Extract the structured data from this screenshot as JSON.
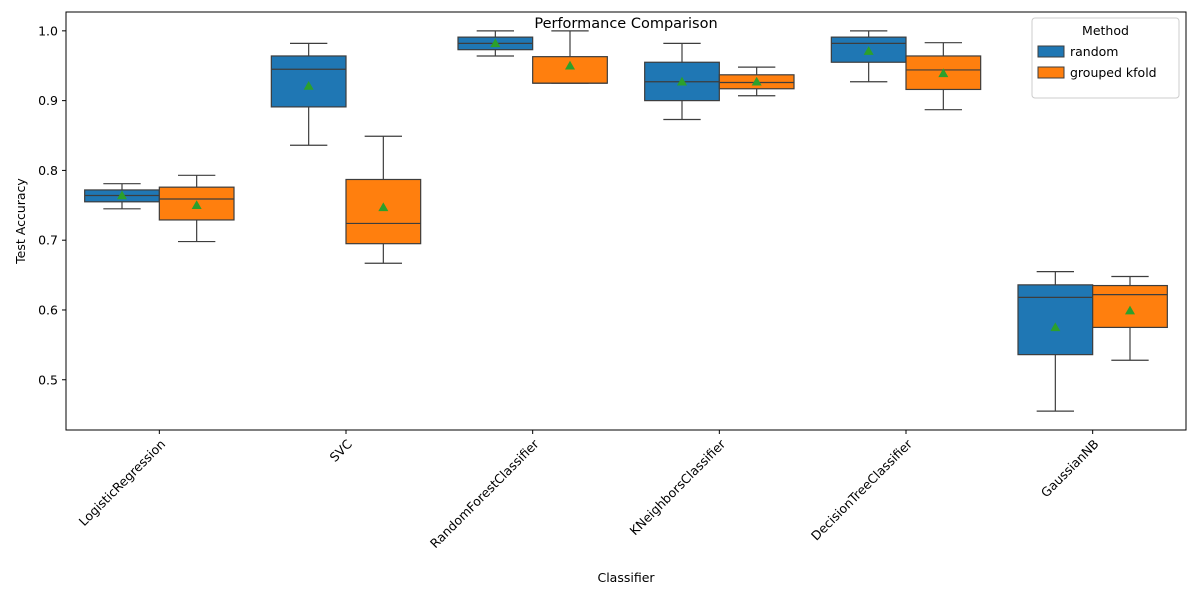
{
  "chart_data": {
    "type": "box",
    "title": "Performance Comparison",
    "xlabel": "Classifier",
    "ylabel": "Test Accuracy",
    "ylim": [
      0.428,
      1.027
    ],
    "yticks": [
      0.5,
      0.6,
      0.7,
      0.8,
      0.9,
      1.0
    ],
    "ytick_labels": [
      "0.5",
      "0.6",
      "0.7",
      "0.8",
      "0.9",
      "1.0"
    ],
    "categories": [
      "LogisticRegression",
      "SVC",
      "RandomForestClassifier",
      "KNeighborsClassifier",
      "DecisionTreeClassifier",
      "GaussianNB"
    ],
    "legend": {
      "title": "Method",
      "placement": "top-right"
    },
    "grid": false,
    "series": [
      {
        "name": "random",
        "color": "#1f77b4",
        "boxes": [
          {
            "whislo": 0.745,
            "q1": 0.755,
            "med": 0.764,
            "q3": 0.772,
            "whishi": 0.781,
            "mean": 0.764
          },
          {
            "whislo": 0.836,
            "q1": 0.891,
            "med": 0.945,
            "q3": 0.964,
            "whishi": 0.982,
            "mean": 0.921
          },
          {
            "whislo": 0.964,
            "q1": 0.973,
            "med": 0.982,
            "q3": 0.991,
            "whishi": 1.0,
            "mean": 0.982
          },
          {
            "whislo": 0.873,
            "q1": 0.9,
            "med": 0.927,
            "q3": 0.955,
            "whishi": 0.982,
            "mean": 0.927
          },
          {
            "whislo": 0.927,
            "q1": 0.955,
            "med": 0.982,
            "q3": 0.991,
            "whishi": 1.0,
            "mean": 0.971
          },
          {
            "whislo": 0.455,
            "q1": 0.536,
            "med": 0.618,
            "q3": 0.636,
            "whishi": 0.655,
            "mean": 0.575
          }
        ]
      },
      {
        "name": "grouped kfold",
        "color": "#ff7f0e",
        "boxes": [
          {
            "whislo": 0.698,
            "q1": 0.729,
            "med": 0.759,
            "q3": 0.776,
            "whishi": 0.793,
            "mean": 0.75
          },
          {
            "whislo": 0.667,
            "q1": 0.695,
            "med": 0.724,
            "q3": 0.787,
            "whishi": 0.849,
            "mean": 0.747
          },
          {
            "whislo": 0.925,
            "q1": 0.925,
            "med": 0.925,
            "q3": 0.963,
            "whishi": 1.0,
            "mean": 0.95
          },
          {
            "whislo": 0.907,
            "q1": 0.917,
            "med": 0.926,
            "q3": 0.937,
            "whishi": 0.948,
            "mean": 0.927
          },
          {
            "whislo": 0.887,
            "q1": 0.916,
            "med": 0.944,
            "q3": 0.964,
            "whishi": 0.983,
            "mean": 0.939
          },
          {
            "whislo": 0.528,
            "q1": 0.575,
            "med": 0.622,
            "q3": 0.635,
            "whishi": 0.648,
            "mean": 0.599
          }
        ]
      }
    ],
    "mean_marker_color": "#2ca02c"
  }
}
